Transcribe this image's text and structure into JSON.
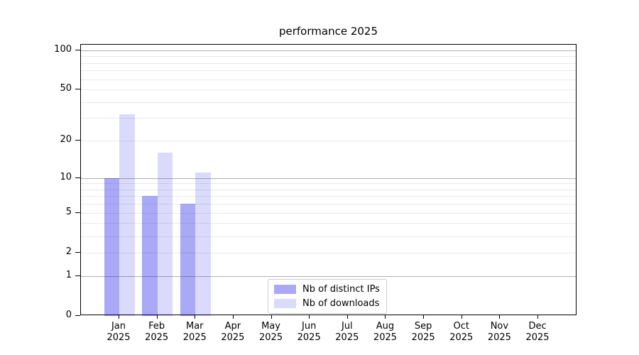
{
  "chart_data": {
    "type": "bar",
    "title": "performance 2025",
    "xlabel": "",
    "ylabel": "",
    "scale": "log10(value+1)",
    "ylim": [
      0,
      110
    ],
    "grid": "on",
    "legend_position": "lower center",
    "year": "2025",
    "categories": [
      "Jan",
      "Feb",
      "Mar",
      "Apr",
      "May",
      "Jun",
      "Jul",
      "Aug",
      "Sep",
      "Oct",
      "Nov",
      "Dec"
    ],
    "series": [
      {
        "name": "Nb of distinct IPs",
        "color": "rgba(10,10,230,0.35)",
        "values": [
          10,
          7,
          6,
          null,
          null,
          null,
          null,
          null,
          null,
          null,
          null,
          null
        ]
      },
      {
        "name": "Nb of downloads",
        "color": "rgba(10,10,230,0.15)",
        "values": [
          32,
          16,
          11,
          null,
          null,
          null,
          null,
          null,
          null,
          null,
          null,
          null
        ]
      }
    ],
    "y_ticks": [
      100,
      50,
      20,
      10,
      5,
      2,
      1,
      0
    ],
    "gridlines": {
      "major": [
        1,
        10,
        100
      ],
      "minor": [
        2,
        3,
        4,
        5,
        6,
        7,
        8,
        9,
        20,
        30,
        40,
        50,
        60,
        70,
        80,
        90
      ]
    },
    "colors": {
      "major_grid": "#b0b0b0",
      "minor_grid": "#e9e9e9",
      "spine": "#000000",
      "legend_border": "#cccccc",
      "text": "#000000"
    }
  }
}
